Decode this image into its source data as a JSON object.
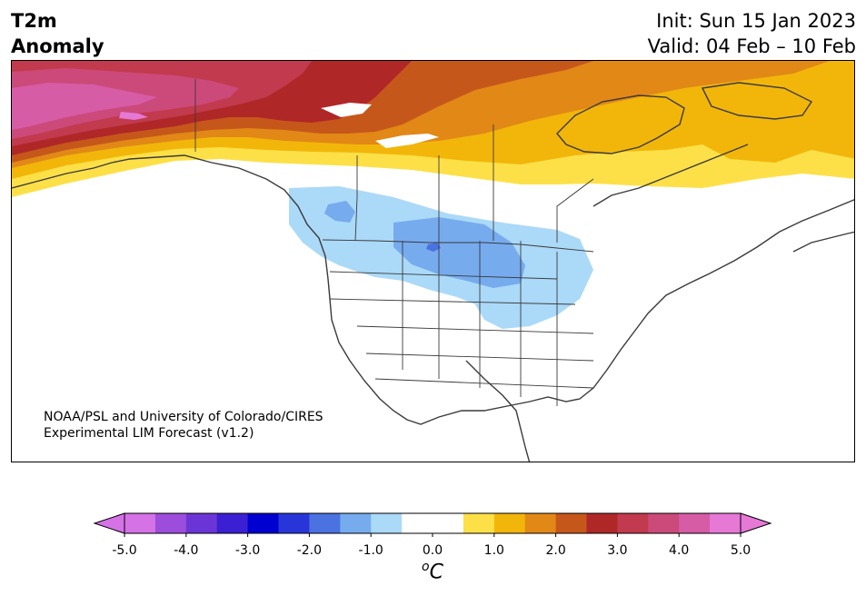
{
  "header": {
    "title_line1": "T2m",
    "title_line2": "Anomaly",
    "init_text": "Init: Sun 15 Jan 2023",
    "valid_text": "Valid: 04 Feb – 10 Feb"
  },
  "credit": {
    "line1": "NOAA/PSL and University of Colorado/CIRES",
    "line2": "Experimental LIM Forecast (v1.2)"
  },
  "colorbar": {
    "units_base": "o",
    "units_letter": "C",
    "tick_labels": [
      "-5.0",
      "-4.0",
      "-3.0",
      "-2.0",
      "-1.0",
      "0.0",
      "1.0",
      "2.0",
      "3.0",
      "4.0",
      "5.0"
    ],
    "colors": [
      "#d572e6",
      "#9c4ddb",
      "#6b35d6",
      "#3b1fd2",
      "#0000d0",
      "#2836d9",
      "#4a72e1",
      "#76abee",
      "#abd9f8",
      "#ffffff",
      "#ffffff",
      "#fde047",
      "#f2b60a",
      "#e18816",
      "#c6571a",
      "#b02727",
      "#c23a4d",
      "#cc4a7a",
      "#d65ca6",
      "#e678d6"
    ],
    "under_color": "#d572e6",
    "over_color": "#e678d6"
  },
  "map": {
    "projection": "Lambert conformal, North America",
    "anomaly_regions": [
      {
        "region": "Alaska",
        "anomaly_c": 4.5
      },
      {
        "region": "Yukon / Northwest Territories",
        "anomaly_c": 3.0
      },
      {
        "region": "Nunavut / Hudson Bay",
        "anomaly_c": 1.5
      },
      {
        "region": "Quebec / Labrador",
        "anomaly_c": 1.0
      },
      {
        "region": "Northern Plains",
        "anomaly_c": -1.5
      }
    ]
  }
}
